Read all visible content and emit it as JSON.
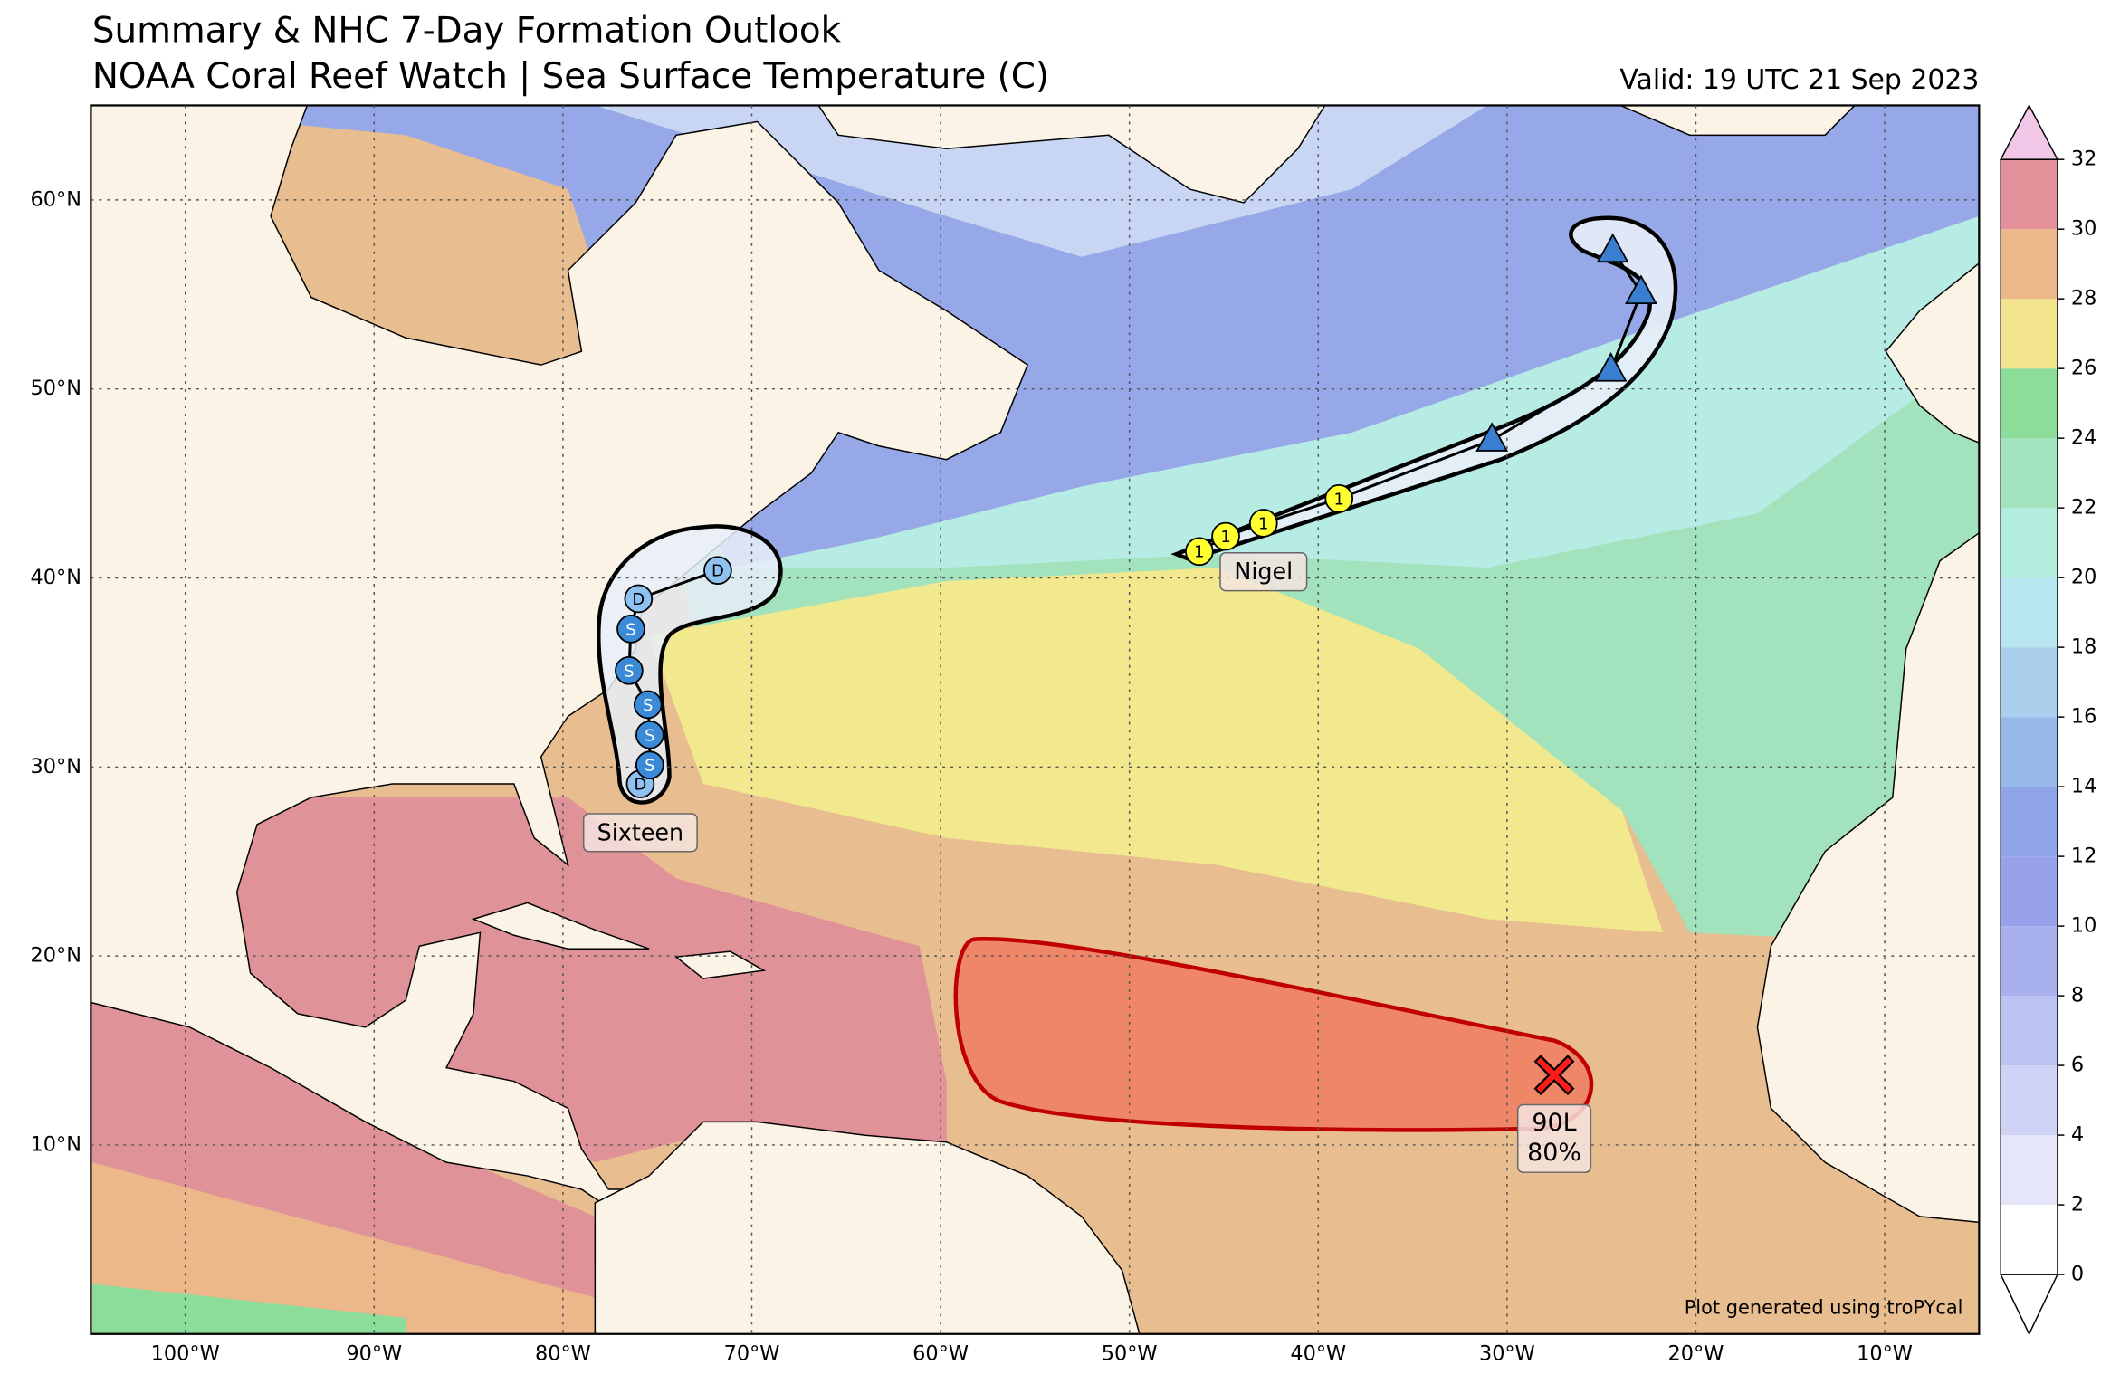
{
  "header": {
    "title": "Summary & NHC 7-Day Formation Outlook",
    "subtitle": "NOAA Coral Reef Watch | Sea Surface Temperature (C)",
    "valid": "Valid: 19 UTC 21 Sep 2023"
  },
  "map": {
    "xlim": [
      -105,
      -5
    ],
    "ylim": [
      0,
      65
    ],
    "xticks": [
      {
        "value": -100,
        "label": "100°W"
      },
      {
        "value": -90,
        "label": "90°W"
      },
      {
        "value": -80,
        "label": "80°W"
      },
      {
        "value": -70,
        "label": "70°W"
      },
      {
        "value": -60,
        "label": "60°W"
      },
      {
        "value": -50,
        "label": "50°W"
      },
      {
        "value": -40,
        "label": "40°W"
      },
      {
        "value": -30,
        "label": "30°W"
      },
      {
        "value": -20,
        "label": "20°W"
      },
      {
        "value": -10,
        "label": "10°W"
      }
    ],
    "yticks": [
      {
        "value": 10,
        "label": "10°N"
      },
      {
        "value": 20,
        "label": "20°N"
      },
      {
        "value": 30,
        "label": "30°N"
      },
      {
        "value": 40,
        "label": "40°N"
      },
      {
        "value": 50,
        "label": "50°N"
      },
      {
        "value": 60,
        "label": "60°N"
      }
    ],
    "grid": true
  },
  "colorbar": {
    "lim": [
      0,
      32
    ],
    "ticks": [
      0,
      2,
      4,
      6,
      8,
      10,
      12,
      14,
      16,
      18,
      20,
      22,
      24,
      26,
      28,
      30,
      32
    ],
    "colors": [
      "#ffffff",
      "#e6e6fa",
      "#d0d2f6",
      "#bcc2f2",
      "#a8b0ee",
      "#97a2ea",
      "#8ea4e6",
      "#98b8ea",
      "#aad0ee",
      "#b8e6f0",
      "#b2ecdc",
      "#a2e2bc",
      "#8cdc9a",
      "#f2e48c",
      "#ecb88a",
      "#e4909a"
    ],
    "over_color": "#f2c8e8",
    "under_color": "#ffffff"
  },
  "storms": [
    {
      "name": "Sixteen",
      "points": [
        {
          "label": "D",
          "marker": "circle",
          "color": "#8ec0f0",
          "lon": -75.9,
          "lat": 29.1
        },
        {
          "label": "S",
          "marker": "circle",
          "color": "#3a8ad8",
          "lon": -75.4,
          "lat": 30.1
        },
        {
          "label": "S",
          "marker": "circle",
          "color": "#3a8ad8",
          "lon": -75.4,
          "lat": 31.7
        },
        {
          "label": "S",
          "marker": "circle",
          "color": "#3a8ad8",
          "lon": -75.5,
          "lat": 33.3
        },
        {
          "label": "S",
          "marker": "circle",
          "color": "#3a8ad8",
          "lon": -76.5,
          "lat": 35.1
        },
        {
          "label": "S",
          "marker": "circle",
          "color": "#3a8ad8",
          "lon": -76.4,
          "lat": 37.3
        },
        {
          "label": "D",
          "marker": "circle",
          "color": "#8ec0f0",
          "lon": -76.0,
          "lat": 38.9
        },
        {
          "label": "D",
          "marker": "circle",
          "color": "#8ec0f0",
          "lon": -71.8,
          "lat": 40.4
        }
      ]
    },
    {
      "name": "Nigel",
      "points": [
        {
          "label": "1",
          "marker": "circle",
          "color": "#ffff30",
          "lon": -46.3,
          "lat": 41.4
        },
        {
          "label": "1",
          "marker": "circle",
          "color": "#ffff30",
          "lon": -44.9,
          "lat": 42.2
        },
        {
          "label": "1",
          "marker": "circle",
          "color": "#ffff30",
          "lon": -42.9,
          "lat": 42.9
        },
        {
          "label": "1",
          "marker": "circle",
          "color": "#ffff30",
          "lon": -38.9,
          "lat": 44.2
        },
        {
          "label": null,
          "marker": "triangle",
          "color": "#3a7ed0",
          "lon": -30.8,
          "lat": 47.3
        },
        {
          "label": null,
          "marker": "triangle",
          "color": "#3a7ed0",
          "lon": -24.5,
          "lat": 51.0
        },
        {
          "label": null,
          "marker": "triangle",
          "color": "#3a7ed0",
          "lon": -22.9,
          "lat": 55.1
        },
        {
          "label": null,
          "marker": "triangle",
          "color": "#3a7ed0",
          "lon": -24.4,
          "lat": 57.3
        }
      ]
    }
  ],
  "outlook": {
    "labels": [
      "90L",
      "80%"
    ],
    "color": "#ff1a1a",
    "lon": -27.5,
    "lat": 13.7
  },
  "credit": "Plot generated using troPYcal"
}
